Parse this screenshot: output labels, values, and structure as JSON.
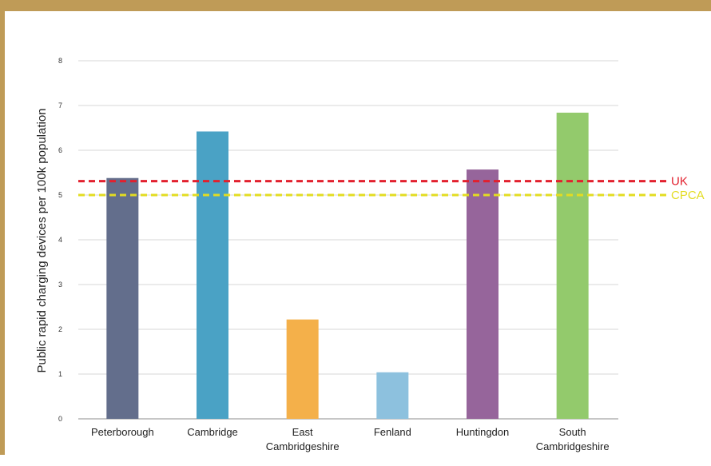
{
  "colors": {
    "frame": "#bf9b57",
    "grid": "#d7d7d7",
    "axis": "#8e8e8e"
  },
  "chart_data": {
    "type": "bar",
    "ylabel": "Public rapid charging devices per 100k population",
    "ylim": [
      0,
      8
    ],
    "yticks": [
      "0",
      "1",
      "2",
      "3",
      "4",
      "5",
      "6",
      "7",
      "8"
    ],
    "grid": true,
    "categories": [
      {
        "label": [
          "Peterborough"
        ],
        "value": 5.38,
        "color": "#636e8c"
      },
      {
        "label": [
          "Cambridge"
        ],
        "value": 6.42,
        "color": "#4aa2c5"
      },
      {
        "label": [
          "East",
          "Cambridgeshire"
        ],
        "value": 2.22,
        "color": "#f4b04a"
      },
      {
        "label": [
          "Fenland"
        ],
        "value": 1.04,
        "color": "#8dc1de"
      },
      {
        "label": [
          "Huntingdon"
        ],
        "value": 5.57,
        "color": "#96659b"
      },
      {
        "label": [
          "South",
          "Cambridgeshire"
        ],
        "value": 6.84,
        "color": "#93ca6c"
      }
    ],
    "reference_lines": [
      {
        "name": "UK",
        "value": 5.31,
        "color": "#e2202e"
      },
      {
        "name": "CPCA",
        "value": 5.0,
        "color": "#e3dc22"
      }
    ]
  }
}
